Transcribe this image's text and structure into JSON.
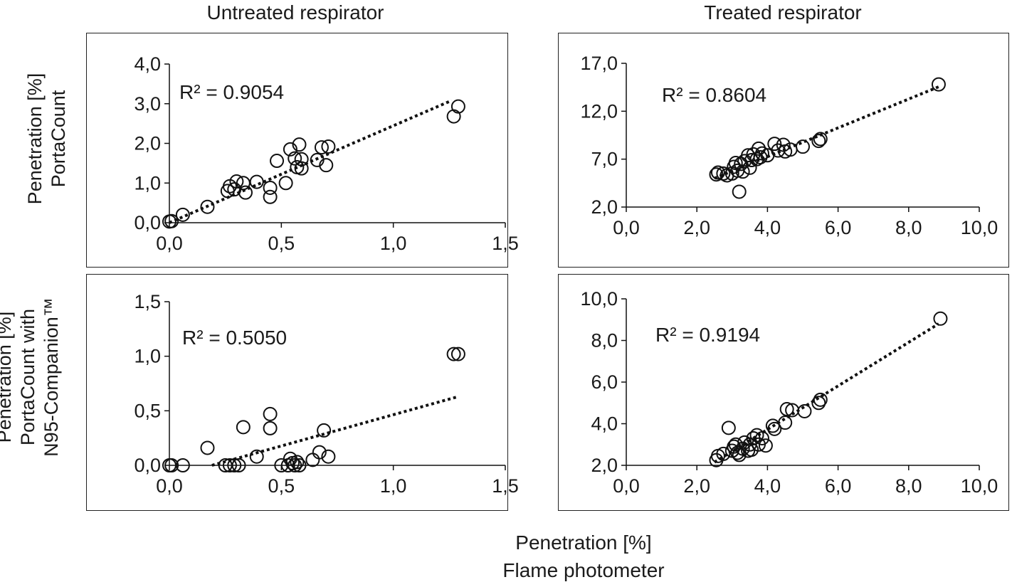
{
  "column_titles": [
    "Untreated respirator",
    "Treated respirator"
  ],
  "row_labels": [
    "Penetration [%]\nPortaCount",
    "Penetration [%]\nPortaCount with\nN95-Companion™"
  ],
  "xlabel_lines": [
    "Penetration [%]",
    "Flame photometer"
  ],
  "chart_data": [
    {
      "type": "scatter",
      "title": "",
      "xlabel": "",
      "ylabel": "",
      "xlim": [
        0,
        1.5
      ],
      "ylim": [
        0,
        4
      ],
      "xticks": [
        0,
        0.5,
        1.0,
        1.5
      ],
      "xtick_labels": [
        "0,0",
        "0,5",
        "1,0",
        "1,5"
      ],
      "yticks": [
        0,
        1,
        2,
        3,
        4
      ],
      "ytick_labels": [
        "0,0",
        "1,0",
        "2,0",
        "3,0",
        "4,0"
      ],
      "annotation": "R² = 0.9054",
      "trendline": {
        "style": "dotted",
        "x": [
          0,
          1.26
        ],
        "y": [
          0.0,
          3.08
        ]
      },
      "points": [
        [
          0.0,
          0.03
        ],
        [
          0.01,
          0.04
        ],
        [
          0.06,
          0.2
        ],
        [
          0.17,
          0.4
        ],
        [
          0.26,
          0.8
        ],
        [
          0.27,
          0.92
        ],
        [
          0.29,
          0.84
        ],
        [
          0.3,
          1.04
        ],
        [
          0.33,
          1.0
        ],
        [
          0.34,
          0.76
        ],
        [
          0.39,
          1.03
        ],
        [
          0.45,
          0.65
        ],
        [
          0.45,
          0.88
        ],
        [
          0.48,
          1.56
        ],
        [
          0.52,
          1.0
        ],
        [
          0.54,
          1.85
        ],
        [
          0.56,
          1.62
        ],
        [
          0.57,
          1.4
        ],
        [
          0.58,
          1.97
        ],
        [
          0.59,
          1.6
        ],
        [
          0.59,
          1.37
        ],
        [
          0.66,
          1.58
        ],
        [
          0.68,
          1.9
        ],
        [
          0.7,
          1.45
        ],
        [
          0.71,
          1.92
        ],
        [
          1.27,
          2.68
        ],
        [
          1.29,
          2.93
        ]
      ],
      "colors": {
        "marker_stroke": "#111111",
        "trendline": "#111111"
      }
    },
    {
      "type": "scatter",
      "title": "",
      "xlabel": "",
      "ylabel": "",
      "xlim": [
        0,
        10
      ],
      "ylim": [
        2,
        17
      ],
      "xticks": [
        0,
        2,
        4,
        6,
        8,
        10
      ],
      "xtick_labels": [
        "0,0",
        "2,0",
        "4,0",
        "6,0",
        "8,0",
        "10,0"
      ],
      "yticks": [
        2,
        7,
        12,
        17
      ],
      "ytick_labels": [
        "2,0",
        "7,0",
        "12,0",
        "17,0"
      ],
      "annotation": "R² = 0.8604",
      "trendline": {
        "style": "dotted",
        "x": [
          2.5,
          8.85
        ],
        "y": [
          5.0,
          14.55
        ]
      },
      "points": [
        [
          2.55,
          5.4
        ],
        [
          2.6,
          5.6
        ],
        [
          2.75,
          5.5
        ],
        [
          2.85,
          5.3
        ],
        [
          3.0,
          5.5
        ],
        [
          3.05,
          6.2
        ],
        [
          3.1,
          6.6
        ],
        [
          3.15,
          5.8
        ],
        [
          3.2,
          3.6
        ],
        [
          3.25,
          6.5
        ],
        [
          3.3,
          5.7
        ],
        [
          3.35,
          6.8
        ],
        [
          3.45,
          7.4
        ],
        [
          3.5,
          6.1
        ],
        [
          3.55,
          6.9
        ],
        [
          3.6,
          7.5
        ],
        [
          3.7,
          7.0
        ],
        [
          3.75,
          8.1
        ],
        [
          3.8,
          7.2
        ],
        [
          3.85,
          7.6
        ],
        [
          4.0,
          7.4
        ],
        [
          4.2,
          8.6
        ],
        [
          4.3,
          7.9
        ],
        [
          4.45,
          8.5
        ],
        [
          4.5,
          7.8
        ],
        [
          4.65,
          8.0
        ],
        [
          5.0,
          8.3
        ],
        [
          5.45,
          8.9
        ],
        [
          5.5,
          9.1
        ],
        [
          8.85,
          14.8
        ]
      ],
      "colors": {
        "marker_stroke": "#111111",
        "trendline": "#111111"
      }
    },
    {
      "type": "scatter",
      "title": "",
      "xlabel": "",
      "ylabel": "",
      "xlim": [
        0,
        1.5
      ],
      "ylim": [
        0,
        1.5
      ],
      "xticks": [
        0,
        0.5,
        1.0,
        1.5
      ],
      "xtick_labels": [
        "0,0",
        "0,5",
        "1,0",
        "1,5"
      ],
      "yticks": [
        0,
        0.5,
        1.0,
        1.5
      ],
      "ytick_labels": [
        "0,0",
        "0,5",
        "1,0",
        "1,5"
      ],
      "annotation": "R² = 0.5050",
      "trendline": {
        "style": "dotted",
        "x": [
          0.19,
          1.29
        ],
        "y": [
          0.0,
          0.63
        ]
      },
      "points": [
        [
          0.0,
          0.0
        ],
        [
          0.01,
          0.0
        ],
        [
          0.06,
          0.0
        ],
        [
          0.17,
          0.16
        ],
        [
          0.25,
          0.0
        ],
        [
          0.27,
          0.0
        ],
        [
          0.29,
          0.0
        ],
        [
          0.31,
          0.0
        ],
        [
          0.33,
          0.35
        ],
        [
          0.39,
          0.08
        ],
        [
          0.45,
          0.47
        ],
        [
          0.45,
          0.34
        ],
        [
          0.5,
          0.0
        ],
        [
          0.53,
          0.0
        ],
        [
          0.54,
          0.06
        ],
        [
          0.55,
          0.02
        ],
        [
          0.56,
          0.0
        ],
        [
          0.57,
          0.03
        ],
        [
          0.58,
          0.0
        ],
        [
          0.64,
          0.05
        ],
        [
          0.67,
          0.12
        ],
        [
          0.69,
          0.32
        ],
        [
          0.71,
          0.08
        ],
        [
          1.27,
          1.02
        ],
        [
          1.29,
          1.02
        ]
      ],
      "colors": {
        "marker_stroke": "#111111",
        "trendline": "#111111"
      }
    },
    {
      "type": "scatter",
      "title": "",
      "xlabel": "",
      "ylabel": "",
      "xlim": [
        0,
        10
      ],
      "ylim": [
        2,
        10
      ],
      "xticks": [
        0,
        2,
        4,
        6,
        8,
        10
      ],
      "xtick_labels": [
        "0,0",
        "2,0",
        "4,0",
        "6,0",
        "8,0",
        "10,0"
      ],
      "yticks": [
        2,
        4,
        6,
        8,
        10
      ],
      "ytick_labels": [
        "2,0",
        "4,0",
        "6,0",
        "8,0",
        "10,0"
      ],
      "annotation": "R² = 0.9194",
      "trendline": {
        "style": "dotted",
        "x": [
          2.5,
          8.85
        ],
        "y": [
          2.15,
          8.8
        ]
      },
      "points": [
        [
          2.55,
          2.25
        ],
        [
          2.6,
          2.45
        ],
        [
          2.75,
          2.55
        ],
        [
          2.9,
          3.8
        ],
        [
          3.0,
          2.7
        ],
        [
          3.05,
          2.9
        ],
        [
          3.1,
          3.0
        ],
        [
          3.15,
          2.6
        ],
        [
          3.2,
          2.5
        ],
        [
          3.3,
          2.8
        ],
        [
          3.35,
          3.1
        ],
        [
          3.45,
          2.7
        ],
        [
          3.5,
          3.0
        ],
        [
          3.55,
          2.75
        ],
        [
          3.6,
          3.3
        ],
        [
          3.7,
          3.45
        ],
        [
          3.75,
          3.0
        ],
        [
          3.85,
          3.3
        ],
        [
          3.95,
          2.95
        ],
        [
          4.15,
          3.9
        ],
        [
          4.2,
          3.75
        ],
        [
          4.5,
          4.05
        ],
        [
          4.55,
          4.7
        ],
        [
          4.7,
          4.65
        ],
        [
          5.05,
          4.6
        ],
        [
          5.45,
          5.0
        ],
        [
          5.5,
          5.15
        ],
        [
          8.9,
          9.05
        ]
      ],
      "colors": {
        "marker_stroke": "#111111",
        "trendline": "#111111"
      }
    }
  ]
}
